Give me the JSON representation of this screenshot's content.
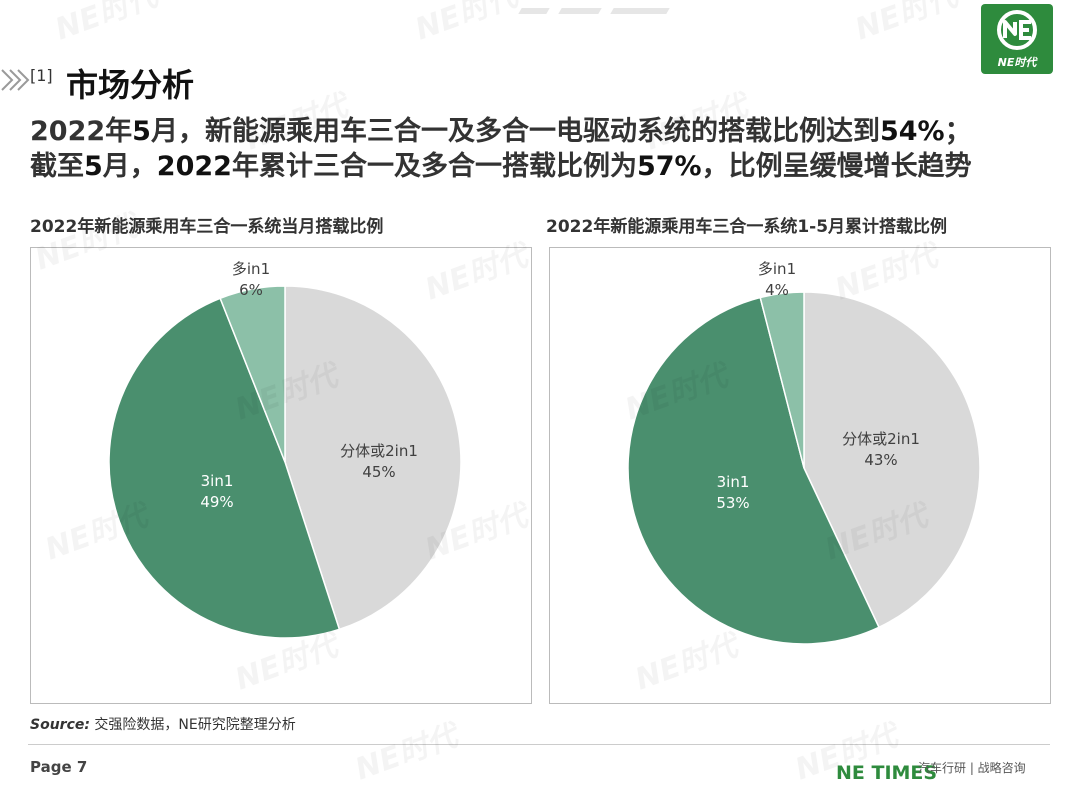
{
  "logo": {
    "text": "NE时代"
  },
  "section": {
    "number": "[1]",
    "title": "市场分析"
  },
  "headline": {
    "line1": [
      {
        "text": "2022年",
        "bold": false
      },
      {
        "text": "5",
        "bold": true
      },
      {
        "text": "月，新能源乘用车三合一及多合一电驱动系统的搭载比例达到",
        "bold": false
      },
      {
        "text": "54%",
        "bold": true
      },
      {
        "text": "；",
        "bold": false
      }
    ],
    "line2": [
      {
        "text": "截至",
        "bold": false
      },
      {
        "text": "5",
        "bold": true
      },
      {
        "text": "月，",
        "bold": false
      },
      {
        "text": "2022",
        "bold": true
      },
      {
        "text": "年累计三合一及多合一搭载比例为",
        "bold": false
      },
      {
        "text": "57%",
        "bold": true
      },
      {
        "text": "，比例呈缓慢增长趋势",
        "bold": false
      }
    ]
  },
  "chart_data": [
    {
      "type": "pie",
      "title": "2022年新能源乘用车三合一系统当月搭载比例",
      "slices": [
        {
          "label": "分体或2in1",
          "value": 45,
          "display": "45%",
          "color": "#d9d9d9"
        },
        {
          "label": "3in1",
          "value": 49,
          "display": "49%",
          "color": "#4a8f6e"
        },
        {
          "label": "多in1",
          "value": 6,
          "display": "6%",
          "color": "#8cc0a8"
        }
      ]
    },
    {
      "type": "pie",
      "title": "2022年新能源乘用车三合一系统1-5月累计搭载比例",
      "slices": [
        {
          "label": "分体或2in1",
          "value": 43,
          "display": "43%",
          "color": "#d9d9d9"
        },
        {
          "label": "3in1",
          "value": 53,
          "display": "53%",
          "color": "#4a8f6e"
        },
        {
          "label": "多in1",
          "value": 4,
          "display": "4%",
          "color": "#8cc0a8"
        }
      ]
    }
  ],
  "source": {
    "label": "Source:",
    "text": "交强险数据，NE研究院整理分析"
  },
  "footer": {
    "page": "Page 7",
    "brand": "NE TIMES",
    "tagline": "汽车行研 | 战略咨询"
  },
  "watermark": {
    "text": "NE时代"
  }
}
